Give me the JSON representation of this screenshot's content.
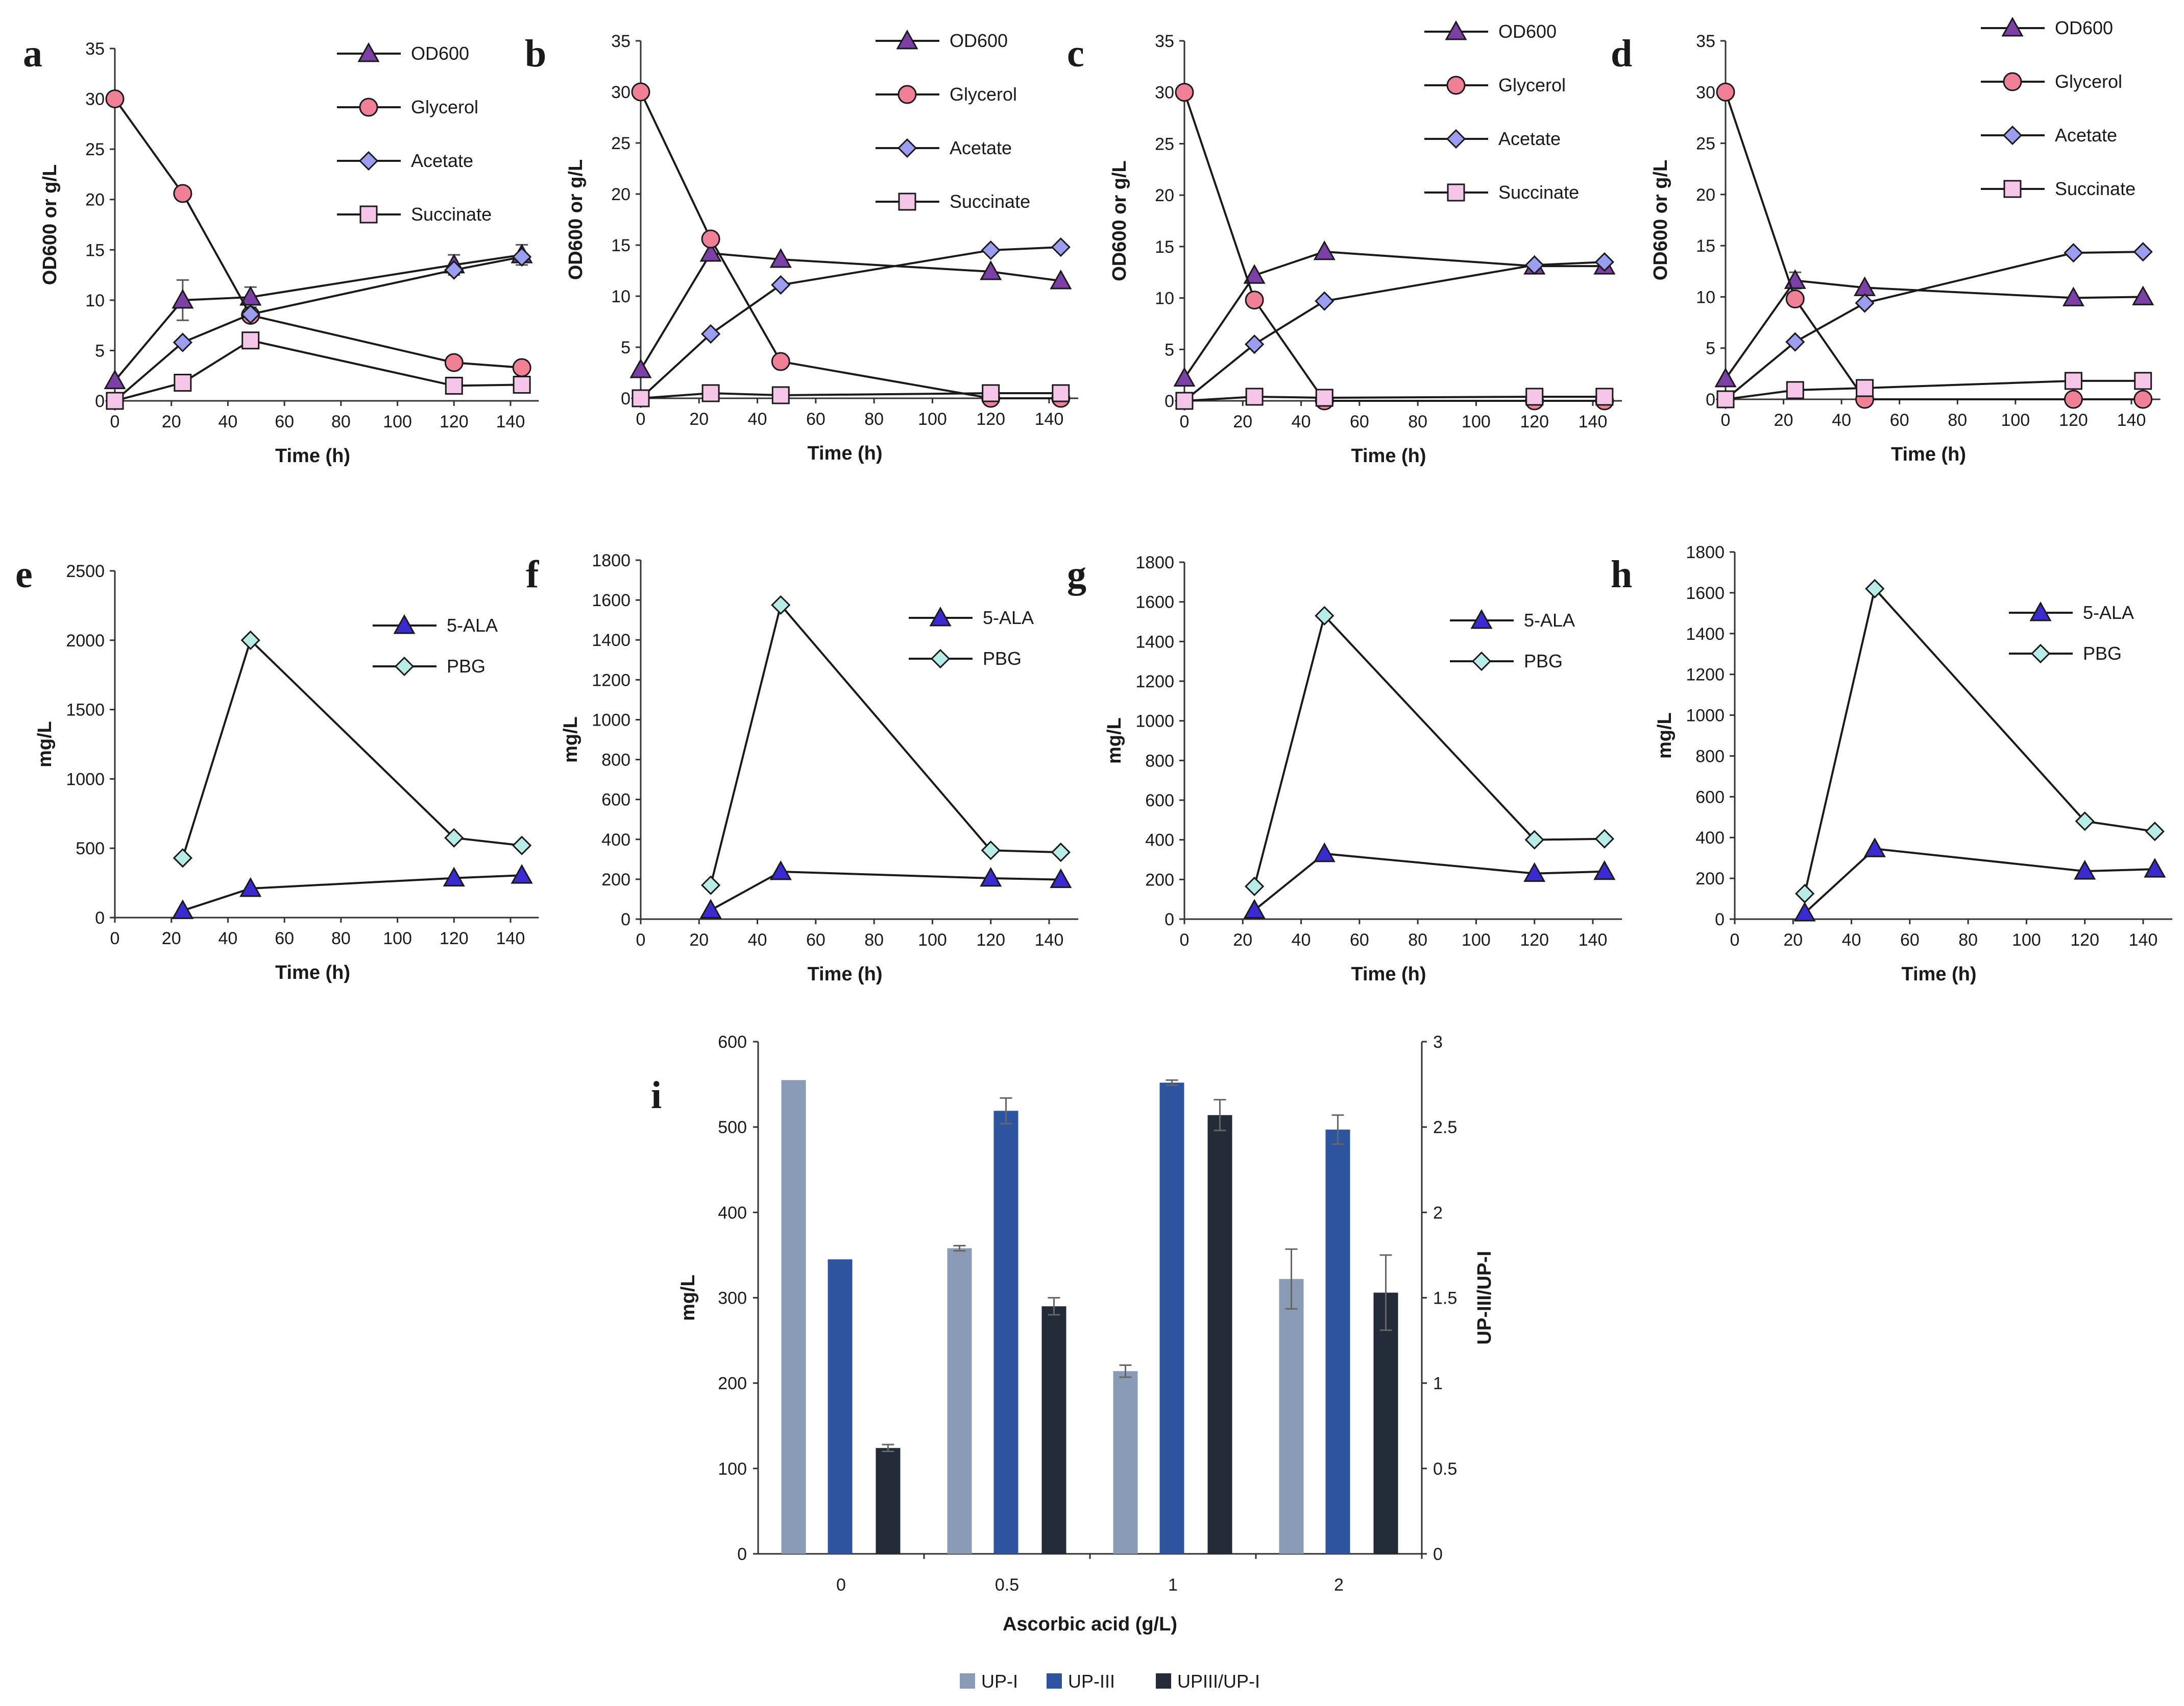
{
  "chart_data": [
    {
      "id": "a",
      "type": "line",
      "panel_letter": "a",
      "xlabel": "Time (h)",
      "ylabel": "OD600 or g/L",
      "xlim": [
        0,
        140
      ],
      "ylim": [
        0,
        35
      ],
      "xticks": [
        "0",
        "20",
        "40",
        "60",
        "80",
        "100",
        "120",
        "140"
      ],
      "yticks": [
        "0",
        "5",
        "10",
        "15",
        "20",
        "25",
        "30",
        "35"
      ],
      "series": [
        {
          "name": "OD600",
          "marker": "triangle",
          "color": "#7b3fa6",
          "x": [
            0,
            24,
            48,
            120,
            144
          ],
          "values": [
            2,
            10,
            10.3,
            13.5,
            14.5
          ],
          "errors": [
            0,
            2,
            1,
            1,
            1
          ]
        },
        {
          "name": "Glycerol",
          "marker": "circle",
          "color": "#f08096",
          "x": [
            0,
            24,
            48,
            120,
            144
          ],
          "values": [
            30,
            20.6,
            8.5,
            3.8,
            3.3
          ],
          "errors": [
            0,
            0,
            0,
            0,
            0
          ]
        },
        {
          "name": "Acetate",
          "marker": "diamond",
          "color": "#9b9ef0",
          "x": [
            0,
            24,
            48,
            120,
            144
          ],
          "values": [
            0,
            5.8,
            8.6,
            13,
            14.3
          ],
          "errors": [
            0,
            0,
            0,
            0,
            0
          ]
        },
        {
          "name": "Succinate",
          "marker": "square",
          "color": "#f5c6e8",
          "x": [
            0,
            24,
            48,
            120,
            144
          ],
          "values": [
            0,
            1.8,
            6,
            1.5,
            1.6
          ],
          "errors": [
            0,
            0,
            0,
            0,
            0
          ]
        }
      ]
    },
    {
      "id": "b",
      "type": "line",
      "panel_letter": "b",
      "xlabel": "Time (h)",
      "ylabel": "OD600 or g/L",
      "xlim": [
        0,
        140
      ],
      "ylim": [
        0,
        35
      ],
      "xticks": [
        "0",
        "20",
        "40",
        "60",
        "80",
        "100",
        "120",
        "140"
      ],
      "yticks": [
        "0",
        "5",
        "10",
        "15",
        "20",
        "25",
        "30",
        "35"
      ],
      "series": [
        {
          "name": "OD600",
          "marker": "triangle",
          "color": "#7b3fa6",
          "x": [
            0,
            24,
            48,
            120,
            144
          ],
          "values": [
            2.8,
            14.2,
            13.6,
            12.4,
            11.5
          ],
          "errors": [
            0,
            0,
            0,
            0,
            0
          ]
        },
        {
          "name": "Glycerol",
          "marker": "circle",
          "color": "#f08096",
          "x": [
            0,
            24,
            48,
            120,
            144
          ],
          "values": [
            30,
            15.6,
            3.6,
            0,
            0
          ],
          "errors": [
            0,
            0,
            0,
            0,
            0
          ]
        },
        {
          "name": "Acetate",
          "marker": "diamond",
          "color": "#9b9ef0",
          "x": [
            0,
            24,
            48,
            120,
            144
          ],
          "values": [
            0,
            6.3,
            11.1,
            14.5,
            14.8
          ],
          "errors": [
            0,
            0,
            0,
            0,
            0
          ]
        },
        {
          "name": "Succinate",
          "marker": "square",
          "color": "#f5c6e8",
          "x": [
            0,
            24,
            48,
            120,
            144
          ],
          "values": [
            0,
            0.5,
            0.3,
            0.5,
            0.5
          ],
          "errors": [
            0,
            0,
            0,
            0,
            0
          ]
        }
      ]
    },
    {
      "id": "c",
      "type": "line",
      "panel_letter": "c",
      "xlabel": "Time (h)",
      "ylabel": "OD600 or g/L",
      "xlim": [
        0,
        140
      ],
      "ylim": [
        0,
        35
      ],
      "xticks": [
        "0",
        "20",
        "40",
        "60",
        "80",
        "100",
        "120",
        "140"
      ],
      "yticks": [
        "0",
        "5",
        "10",
        "15",
        "20",
        "25",
        "30",
        "35"
      ],
      "series": [
        {
          "name": "OD600",
          "marker": "triangle",
          "color": "#7b3fa6",
          "x": [
            0,
            24,
            48,
            120,
            144
          ],
          "values": [
            2.2,
            12.2,
            14.5,
            13.1,
            13.1
          ],
          "errors": [
            0,
            0,
            0,
            0,
            0
          ]
        },
        {
          "name": "Glycerol",
          "marker": "circle",
          "color": "#f08096",
          "x": [
            0,
            24,
            48,
            120,
            144
          ],
          "values": [
            30,
            9.8,
            0,
            0,
            0
          ],
          "errors": [
            0,
            0,
            0,
            0,
            0
          ]
        },
        {
          "name": "Acetate",
          "marker": "diamond",
          "color": "#9b9ef0",
          "x": [
            0,
            24,
            48,
            120,
            144
          ],
          "values": [
            0,
            5.5,
            9.7,
            13.2,
            13.5
          ],
          "errors": [
            0,
            0,
            0,
            0,
            0
          ]
        },
        {
          "name": "Succinate",
          "marker": "square",
          "color": "#f5c6e8",
          "x": [
            0,
            24,
            48,
            120,
            144
          ],
          "values": [
            0,
            0.4,
            0.3,
            0.4,
            0.4
          ],
          "errors": [
            0,
            0,
            0,
            0,
            0
          ]
        }
      ]
    },
    {
      "id": "d",
      "type": "line",
      "panel_letter": "d",
      "xlabel": "Time (h)",
      "ylabel": "OD600 or g/L",
      "xlim": [
        0,
        140
      ],
      "ylim": [
        0,
        35
      ],
      "xticks": [
        "0",
        "20",
        "40",
        "60",
        "80",
        "100",
        "120",
        "140"
      ],
      "yticks": [
        "0",
        "5",
        "10",
        "15",
        "20",
        "25",
        "30",
        "35"
      ],
      "series": [
        {
          "name": "OD600",
          "marker": "triangle",
          "color": "#7b3fa6",
          "x": [
            0,
            24,
            48,
            120,
            144
          ],
          "values": [
            2,
            11.6,
            10.9,
            9.9,
            10
          ],
          "errors": [
            0,
            0.8,
            0,
            0,
            0
          ]
        },
        {
          "name": "Glycerol",
          "marker": "circle",
          "color": "#f08096",
          "x": [
            0,
            24,
            48,
            120,
            144
          ],
          "values": [
            30,
            9.8,
            0,
            0,
            0
          ],
          "errors": [
            0,
            0,
            0,
            0,
            0
          ]
        },
        {
          "name": "Acetate",
          "marker": "diamond",
          "color": "#9b9ef0",
          "x": [
            0,
            24,
            48,
            120,
            144
          ],
          "values": [
            0,
            5.6,
            9.4,
            14.3,
            14.4
          ],
          "errors": [
            0,
            0,
            0,
            0,
            0
          ]
        },
        {
          "name": "Succinate",
          "marker": "square",
          "color": "#f5c6e8",
          "x": [
            0,
            24,
            48,
            120,
            144
          ],
          "values": [
            0,
            0.9,
            1.1,
            1.8,
            1.8
          ],
          "errors": [
            0,
            0,
            0,
            0,
            0
          ]
        }
      ]
    },
    {
      "id": "e",
      "type": "line",
      "panel_letter": "e",
      "xlabel": "Time (h)",
      "ylabel": "mg/L",
      "xlim": [
        0,
        140
      ],
      "ylim": [
        0,
        2500
      ],
      "xticks": [
        "0",
        "20",
        "40",
        "60",
        "80",
        "100",
        "120",
        "140"
      ],
      "yticks": [
        "0",
        "500",
        "1000",
        "1500",
        "2000",
        "2500"
      ],
      "series": [
        {
          "name": "5-ALA",
          "marker": "triangle",
          "color": "#3a2bd0",
          "x": [
            24,
            48,
            120,
            144
          ],
          "values": [
            50,
            210,
            285,
            305
          ],
          "errors": [
            0,
            0,
            0,
            0
          ]
        },
        {
          "name": "PBG",
          "marker": "diamond",
          "color": "#b8ece6",
          "x": [
            24,
            48,
            120,
            144
          ],
          "values": [
            430,
            2000,
            575,
            520
          ],
          "errors": [
            0,
            0,
            0,
            0
          ]
        }
      ]
    },
    {
      "id": "f",
      "type": "line",
      "panel_letter": "f",
      "xlabel": "Time (h)",
      "ylabel": "mg/L",
      "xlim": [
        0,
        140
      ],
      "ylim": [
        0,
        1800
      ],
      "xticks": [
        "0",
        "20",
        "40",
        "60",
        "80",
        "100",
        "120",
        "140"
      ],
      "yticks": [
        "0",
        "200",
        "400",
        "600",
        "800",
        "1000",
        "1200",
        "1400",
        "1600",
        "1800"
      ],
      "series": [
        {
          "name": "5-ALA",
          "marker": "triangle",
          "color": "#3a2bd0",
          "x": [
            24,
            48,
            120,
            144
          ],
          "values": [
            45,
            238,
            205,
            198
          ],
          "errors": [
            0,
            0,
            0,
            0
          ]
        },
        {
          "name": "PBG",
          "marker": "diamond",
          "color": "#b8ece6",
          "x": [
            24,
            48,
            120,
            144
          ],
          "values": [
            170,
            1575,
            345,
            335
          ],
          "errors": [
            0,
            0,
            0,
            0
          ]
        }
      ]
    },
    {
      "id": "g",
      "type": "line",
      "panel_letter": "g",
      "xlabel": "Time (h)",
      "ylabel": "mg/L",
      "xlim": [
        0,
        140
      ],
      "ylim": [
        0,
        1800
      ],
      "xticks": [
        "0",
        "20",
        "40",
        "60",
        "80",
        "100",
        "120",
        "140"
      ],
      "yticks": [
        "0",
        "200",
        "400",
        "600",
        "800",
        "1000",
        "1200",
        "1400",
        "1600",
        "1800"
      ],
      "series": [
        {
          "name": "5-ALA",
          "marker": "triangle",
          "color": "#3a2bd0",
          "x": [
            24,
            48,
            120,
            144
          ],
          "values": [
            45,
            330,
            230,
            240
          ],
          "errors": [
            0,
            0,
            0,
            0
          ]
        },
        {
          "name": "PBG",
          "marker": "diamond",
          "color": "#b8ece6",
          "x": [
            24,
            48,
            120,
            144
          ],
          "values": [
            165,
            1530,
            400,
            405
          ],
          "errors": [
            0,
            0,
            0,
            0
          ]
        }
      ]
    },
    {
      "id": "h",
      "type": "line",
      "panel_letter": "h",
      "xlabel": "Time (h)",
      "ylabel": "mg/L",
      "xlim": [
        0,
        140
      ],
      "ylim": [
        0,
        1800
      ],
      "xticks": [
        "0",
        "20",
        "40",
        "60",
        "80",
        "100",
        "120",
        "140"
      ],
      "yticks": [
        "0",
        "200",
        "400",
        "600",
        "800",
        "1000",
        "1200",
        "1400",
        "1600",
        "1800"
      ],
      "series": [
        {
          "name": "5-ALA",
          "marker": "triangle",
          "color": "#3a2bd0",
          "x": [
            24,
            48,
            120,
            144
          ],
          "values": [
            30,
            345,
            235,
            245
          ],
          "errors": [
            0,
            0,
            0,
            0
          ]
        },
        {
          "name": "PBG",
          "marker": "diamond",
          "color": "#b8ece6",
          "x": [
            24,
            48,
            120,
            144
          ],
          "values": [
            125,
            1620,
            480,
            430
          ],
          "errors": [
            0,
            0,
            0,
            0
          ]
        }
      ]
    },
    {
      "id": "i",
      "type": "bar",
      "panel_letter": "i",
      "xlabel": "Ascorbic acid (g/L)",
      "ylabel": "mg/L",
      "y2label": "UP-III/UP-I",
      "categories": [
        "0",
        "0.5",
        "1",
        "2"
      ],
      "ylim": [
        0,
        600
      ],
      "y2lim": [
        0,
        3
      ],
      "yticks": [
        "0",
        "100",
        "200",
        "300",
        "400",
        "500",
        "600"
      ],
      "y2ticks": [
        "0",
        "0.5",
        "1",
        "1.5",
        "2",
        "2.5",
        "3"
      ],
      "series": [
        {
          "name": "UP-I",
          "axis": "left",
          "color": "#8a9bb5",
          "values": [
            555,
            358,
            214,
            322
          ],
          "errors": [
            0,
            3,
            7,
            35
          ]
        },
        {
          "name": "UP-III",
          "axis": "left",
          "color": "#2e54a0",
          "values": [
            345,
            519,
            552,
            497
          ],
          "errors": [
            0,
            15,
            3,
            17
          ]
        },
        {
          "name": "UPIII/UP-I",
          "axis": "right",
          "color": "#232a38",
          "values": [
            0.62,
            1.45,
            2.57,
            1.53
          ],
          "errors": [
            0.02,
            0.05,
            0.09,
            0.22
          ]
        }
      ]
    }
  ]
}
